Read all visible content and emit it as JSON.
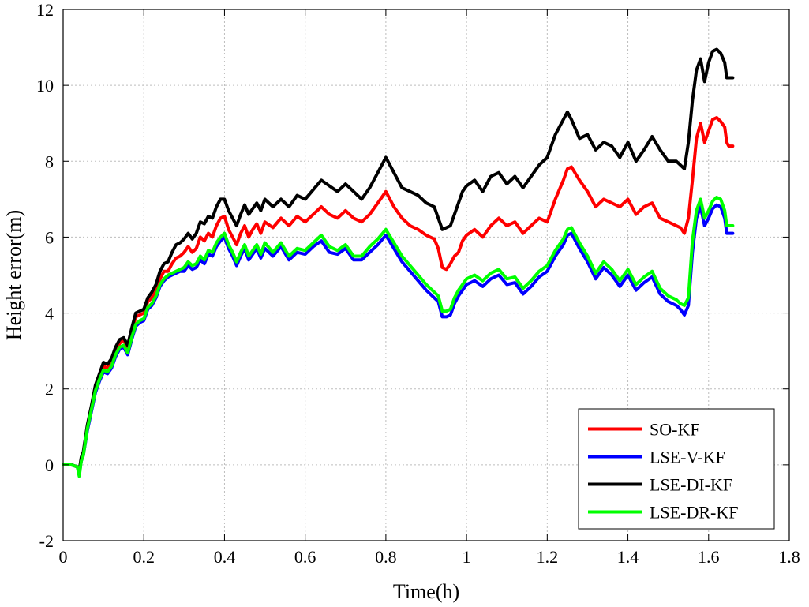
{
  "chart_data": {
    "type": "line",
    "xlabel": "Time(h)",
    "ylabel": "Height error(m)",
    "xlim": [
      0,
      1.8
    ],
    "ylim": [
      -2,
      12
    ],
    "xticks": [
      "0",
      "0.2",
      "0.4",
      "0.6",
      "0.8",
      "1",
      "1.2",
      "1.4",
      "1.6",
      "1.8"
    ],
    "yticks": [
      "-2",
      "0",
      "2",
      "4",
      "6",
      "8",
      "10",
      "12"
    ],
    "grid": true,
    "legend_position": "bottom-right",
    "series": [
      {
        "name": "SO-KF",
        "color": "#ff0000",
        "x": [
          0,
          0.02,
          0.035,
          0.04,
          0.045,
          0.05,
          0.06,
          0.07,
          0.08,
          0.09,
          0.1,
          0.11,
          0.12,
          0.13,
          0.14,
          0.15,
          0.16,
          0.17,
          0.18,
          0.19,
          0.2,
          0.21,
          0.22,
          0.23,
          0.24,
          0.25,
          0.26,
          0.27,
          0.28,
          0.29,
          0.3,
          0.31,
          0.32,
          0.33,
          0.34,
          0.35,
          0.36,
          0.37,
          0.38,
          0.39,
          0.4,
          0.41,
          0.42,
          0.43,
          0.44,
          0.45,
          0.46,
          0.47,
          0.48,
          0.49,
          0.5,
          0.52,
          0.54,
          0.56,
          0.58,
          0.6,
          0.62,
          0.64,
          0.66,
          0.68,
          0.7,
          0.72,
          0.74,
          0.76,
          0.78,
          0.8,
          0.82,
          0.84,
          0.86,
          0.88,
          0.9,
          0.92,
          0.93,
          0.94,
          0.95,
          0.96,
          0.97,
          0.98,
          0.99,
          1.0,
          1.02,
          1.04,
          1.06,
          1.08,
          1.1,
          1.12,
          1.14,
          1.16,
          1.18,
          1.2,
          1.22,
          1.24,
          1.25,
          1.26,
          1.28,
          1.3,
          1.32,
          1.34,
          1.36,
          1.38,
          1.4,
          1.42,
          1.44,
          1.46,
          1.48,
          1.5,
          1.52,
          1.53,
          1.54,
          1.55,
          1.56,
          1.57,
          1.58,
          1.59,
          1.6,
          1.61,
          1.62,
          1.63,
          1.64,
          1.645,
          1.65,
          1.66
        ],
        "y": [
          0,
          0,
          -0.05,
          -0.2,
          0.15,
          0.3,
          1.0,
          1.5,
          2.0,
          2.3,
          2.6,
          2.55,
          2.7,
          3.0,
          3.2,
          3.3,
          3.05,
          3.5,
          3.9,
          3.95,
          4.0,
          4.3,
          4.4,
          4.6,
          4.9,
          5.1,
          5.1,
          5.3,
          5.45,
          5.5,
          5.6,
          5.75,
          5.6,
          5.7,
          6.0,
          5.9,
          6.1,
          6.0,
          6.3,
          6.5,
          6.55,
          6.2,
          6.0,
          5.8,
          6.1,
          6.3,
          6.0,
          6.2,
          6.35,
          6.1,
          6.4,
          6.25,
          6.5,
          6.3,
          6.55,
          6.4,
          6.6,
          6.8,
          6.6,
          6.5,
          6.7,
          6.5,
          6.4,
          6.6,
          6.9,
          7.2,
          6.8,
          6.5,
          6.3,
          6.2,
          6.05,
          5.95,
          5.7,
          5.2,
          5.15,
          5.3,
          5.5,
          5.6,
          5.9,
          6.05,
          6.2,
          6.0,
          6.3,
          6.5,
          6.3,
          6.4,
          6.1,
          6.3,
          6.5,
          6.4,
          7.0,
          7.5,
          7.8,
          7.85,
          7.5,
          7.2,
          6.8,
          7.0,
          6.9,
          6.8,
          7.0,
          6.6,
          6.8,
          6.9,
          6.5,
          6.4,
          6.3,
          6.25,
          6.1,
          6.5,
          7.5,
          8.6,
          9.0,
          8.5,
          8.8,
          9.1,
          9.15,
          9.05,
          8.9,
          8.5,
          8.4,
          8.4
        ]
      },
      {
        "name": "LSE-V-KF",
        "color": "#0000ff",
        "x": [
          0,
          0.02,
          0.035,
          0.04,
          0.045,
          0.05,
          0.06,
          0.07,
          0.08,
          0.09,
          0.1,
          0.11,
          0.12,
          0.13,
          0.14,
          0.15,
          0.16,
          0.17,
          0.18,
          0.19,
          0.2,
          0.21,
          0.22,
          0.23,
          0.24,
          0.25,
          0.26,
          0.27,
          0.28,
          0.29,
          0.3,
          0.31,
          0.32,
          0.33,
          0.34,
          0.35,
          0.36,
          0.37,
          0.38,
          0.39,
          0.4,
          0.41,
          0.42,
          0.43,
          0.44,
          0.45,
          0.46,
          0.47,
          0.48,
          0.49,
          0.5,
          0.52,
          0.54,
          0.56,
          0.58,
          0.6,
          0.62,
          0.64,
          0.66,
          0.68,
          0.7,
          0.72,
          0.74,
          0.76,
          0.78,
          0.8,
          0.82,
          0.84,
          0.86,
          0.88,
          0.9,
          0.92,
          0.93,
          0.94,
          0.95,
          0.96,
          0.97,
          0.98,
          0.99,
          1.0,
          1.02,
          1.04,
          1.06,
          1.08,
          1.1,
          1.12,
          1.14,
          1.16,
          1.18,
          1.2,
          1.22,
          1.24,
          1.25,
          1.26,
          1.28,
          1.3,
          1.32,
          1.34,
          1.36,
          1.38,
          1.4,
          1.42,
          1.44,
          1.46,
          1.48,
          1.5,
          1.52,
          1.53,
          1.54,
          1.55,
          1.56,
          1.57,
          1.58,
          1.59,
          1.6,
          1.61,
          1.62,
          1.63,
          1.64,
          1.645,
          1.65,
          1.66
        ],
        "y": [
          0,
          0,
          -0.05,
          -0.25,
          0.1,
          0.25,
          0.9,
          1.4,
          1.9,
          2.2,
          2.45,
          2.4,
          2.55,
          2.85,
          3.05,
          3.1,
          2.9,
          3.3,
          3.65,
          3.75,
          3.8,
          4.1,
          4.2,
          4.4,
          4.7,
          4.85,
          4.95,
          5.0,
          5.05,
          5.1,
          5.1,
          5.25,
          5.15,
          5.2,
          5.4,
          5.3,
          5.55,
          5.5,
          5.75,
          5.9,
          6.0,
          5.7,
          5.5,
          5.25,
          5.5,
          5.7,
          5.4,
          5.55,
          5.7,
          5.45,
          5.7,
          5.5,
          5.75,
          5.4,
          5.6,
          5.55,
          5.75,
          5.9,
          5.6,
          5.55,
          5.7,
          5.4,
          5.4,
          5.6,
          5.8,
          6.05,
          5.7,
          5.35,
          5.1,
          4.85,
          4.6,
          4.4,
          4.3,
          3.9,
          3.9,
          3.95,
          4.25,
          4.45,
          4.6,
          4.75,
          4.85,
          4.7,
          4.9,
          5.0,
          4.75,
          4.8,
          4.5,
          4.7,
          4.95,
          5.1,
          5.5,
          5.8,
          6.05,
          6.1,
          5.7,
          5.35,
          4.9,
          5.2,
          5.0,
          4.7,
          5.0,
          4.6,
          4.8,
          4.95,
          4.5,
          4.3,
          4.2,
          4.1,
          3.95,
          4.2,
          5.6,
          6.5,
          6.8,
          6.3,
          6.5,
          6.75,
          6.85,
          6.8,
          6.5,
          6.1,
          6.1,
          6.1
        ]
      },
      {
        "name": "LSE-DI-KF",
        "color": "#000000",
        "x": [
          0,
          0.02,
          0.035,
          0.04,
          0.045,
          0.05,
          0.06,
          0.07,
          0.08,
          0.09,
          0.1,
          0.11,
          0.12,
          0.13,
          0.14,
          0.15,
          0.16,
          0.17,
          0.18,
          0.19,
          0.2,
          0.21,
          0.22,
          0.23,
          0.24,
          0.25,
          0.26,
          0.27,
          0.28,
          0.29,
          0.3,
          0.31,
          0.32,
          0.33,
          0.34,
          0.35,
          0.36,
          0.37,
          0.38,
          0.39,
          0.4,
          0.41,
          0.42,
          0.43,
          0.44,
          0.45,
          0.46,
          0.47,
          0.48,
          0.49,
          0.5,
          0.52,
          0.54,
          0.56,
          0.58,
          0.6,
          0.62,
          0.64,
          0.66,
          0.68,
          0.7,
          0.72,
          0.74,
          0.76,
          0.78,
          0.8,
          0.82,
          0.84,
          0.86,
          0.88,
          0.9,
          0.92,
          0.93,
          0.94,
          0.95,
          0.96,
          0.97,
          0.98,
          0.99,
          1.0,
          1.02,
          1.04,
          1.06,
          1.08,
          1.1,
          1.12,
          1.14,
          1.16,
          1.18,
          1.2,
          1.22,
          1.24,
          1.25,
          1.26,
          1.28,
          1.3,
          1.32,
          1.34,
          1.36,
          1.38,
          1.4,
          1.42,
          1.44,
          1.46,
          1.48,
          1.5,
          1.52,
          1.53,
          1.54,
          1.55,
          1.56,
          1.57,
          1.58,
          1.59,
          1.6,
          1.61,
          1.62,
          1.63,
          1.64,
          1.645,
          1.65,
          1.66
        ],
        "y": [
          0,
          0,
          -0.05,
          -0.15,
          0.2,
          0.35,
          1.05,
          1.55,
          2.1,
          2.4,
          2.7,
          2.65,
          2.8,
          3.1,
          3.3,
          3.35,
          3.15,
          3.6,
          4.0,
          4.05,
          4.1,
          4.4,
          4.55,
          4.75,
          5.1,
          5.3,
          5.35,
          5.6,
          5.8,
          5.85,
          5.95,
          6.1,
          5.95,
          6.1,
          6.4,
          6.35,
          6.55,
          6.5,
          6.8,
          7.0,
          7.0,
          6.7,
          6.5,
          6.3,
          6.6,
          6.85,
          6.6,
          6.75,
          6.9,
          6.7,
          7.0,
          6.8,
          7.0,
          6.8,
          7.1,
          7.0,
          7.25,
          7.5,
          7.35,
          7.2,
          7.4,
          7.2,
          7.0,
          7.3,
          7.7,
          8.1,
          7.7,
          7.3,
          7.2,
          7.1,
          6.9,
          6.8,
          6.5,
          6.2,
          6.25,
          6.3,
          6.6,
          6.9,
          7.2,
          7.35,
          7.5,
          7.2,
          7.6,
          7.7,
          7.4,
          7.6,
          7.3,
          7.6,
          7.9,
          8.1,
          8.7,
          9.1,
          9.3,
          9.1,
          8.6,
          8.7,
          8.3,
          8.5,
          8.4,
          8.1,
          8.5,
          8.0,
          8.3,
          8.65,
          8.3,
          8.0,
          8.0,
          7.9,
          7.8,
          8.5,
          9.6,
          10.4,
          10.7,
          10.1,
          10.6,
          10.9,
          10.95,
          10.85,
          10.6,
          10.2,
          10.2,
          10.2
        ]
      },
      {
        "name": "LSE-DR-KF",
        "color": "#00ff00",
        "x": [
          0,
          0.02,
          0.035,
          0.04,
          0.045,
          0.05,
          0.06,
          0.07,
          0.08,
          0.09,
          0.1,
          0.11,
          0.12,
          0.13,
          0.14,
          0.15,
          0.16,
          0.17,
          0.18,
          0.19,
          0.2,
          0.21,
          0.22,
          0.23,
          0.24,
          0.25,
          0.26,
          0.27,
          0.28,
          0.29,
          0.3,
          0.31,
          0.32,
          0.33,
          0.34,
          0.35,
          0.36,
          0.37,
          0.38,
          0.39,
          0.4,
          0.41,
          0.42,
          0.43,
          0.44,
          0.45,
          0.46,
          0.47,
          0.48,
          0.49,
          0.5,
          0.52,
          0.54,
          0.56,
          0.58,
          0.6,
          0.62,
          0.64,
          0.66,
          0.68,
          0.7,
          0.72,
          0.74,
          0.76,
          0.78,
          0.8,
          0.82,
          0.84,
          0.86,
          0.88,
          0.9,
          0.92,
          0.93,
          0.94,
          0.95,
          0.96,
          0.97,
          0.98,
          0.99,
          1.0,
          1.02,
          1.04,
          1.06,
          1.08,
          1.1,
          1.12,
          1.14,
          1.16,
          1.18,
          1.2,
          1.22,
          1.24,
          1.25,
          1.26,
          1.28,
          1.3,
          1.32,
          1.34,
          1.36,
          1.38,
          1.4,
          1.42,
          1.44,
          1.46,
          1.48,
          1.5,
          1.52,
          1.53,
          1.54,
          1.55,
          1.56,
          1.57,
          1.58,
          1.59,
          1.6,
          1.61,
          1.62,
          1.63,
          1.64,
          1.645,
          1.65,
          1.66
        ],
        "y": [
          0,
          0,
          -0.05,
          -0.3,
          0.1,
          0.25,
          0.95,
          1.45,
          1.95,
          2.25,
          2.5,
          2.45,
          2.6,
          2.9,
          3.1,
          3.15,
          2.95,
          3.35,
          3.7,
          3.8,
          3.85,
          4.15,
          4.25,
          4.45,
          4.75,
          4.9,
          5.0,
          5.05,
          5.1,
          5.15,
          5.2,
          5.35,
          5.25,
          5.3,
          5.5,
          5.4,
          5.65,
          5.6,
          5.85,
          6.0,
          6.1,
          5.8,
          5.6,
          5.35,
          5.6,
          5.8,
          5.5,
          5.65,
          5.8,
          5.55,
          5.85,
          5.6,
          5.85,
          5.5,
          5.7,
          5.65,
          5.85,
          6.05,
          5.75,
          5.65,
          5.8,
          5.5,
          5.5,
          5.75,
          5.95,
          6.2,
          5.85,
          5.5,
          5.25,
          5.0,
          4.75,
          4.55,
          4.45,
          4.05,
          4.05,
          4.1,
          4.4,
          4.6,
          4.75,
          4.9,
          5.0,
          4.85,
          5.05,
          5.15,
          4.9,
          4.95,
          4.65,
          4.85,
          5.1,
          5.25,
          5.65,
          5.95,
          6.2,
          6.25,
          5.85,
          5.5,
          5.05,
          5.35,
          5.15,
          4.85,
          5.15,
          4.75,
          4.95,
          5.1,
          4.65,
          4.45,
          4.35,
          4.25,
          4.2,
          4.4,
          5.9,
          6.7,
          7.0,
          6.5,
          6.7,
          6.95,
          7.05,
          7.0,
          6.7,
          6.3,
          6.3,
          6.3
        ]
      }
    ]
  }
}
